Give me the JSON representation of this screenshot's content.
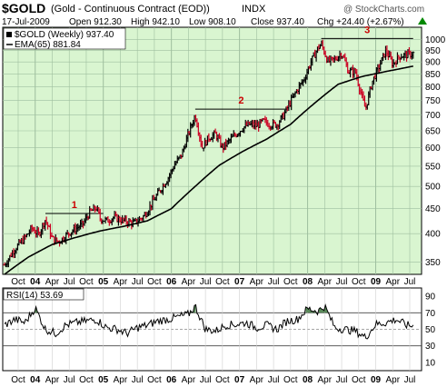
{
  "header": {
    "symbol": "$GOLD",
    "name": "(Gold - Continuous Contract (EOD))",
    "exchange": "INDX",
    "watermark": "@ StockCharts.com",
    "date": "17-Jul-2009",
    "open": "Open 912.30",
    "high": "High 942.10",
    "low": "Low 908.10",
    "close": "Close 937.40",
    "chg": "Chg +24.40 (+2.67%)",
    "chg_arrow": "triangle-up-icon"
  },
  "legend": {
    "price": "$GOLD (Weekly) 937.40",
    "ema": "EMA(65) 881.84",
    "rsi": "RSI(14) 53.69"
  },
  "colors": {
    "panel_bg": "#d9f5d0",
    "grid": "#9fbf9f",
    "up_bar": "#000000",
    "down_bar": "#cc0022",
    "ema_line": "#000000",
    "annotation": "#cc0000",
    "chg_text": "#008800",
    "rsi_fill": "#5a8a5a"
  },
  "chart_data": [
    {
      "type": "line",
      "title": "$GOLD (Gold - Continuous Contract (EOD)) INDX",
      "y_scale": "log",
      "ylim": [
        330,
        1060
      ],
      "y_ticks": [
        350,
        400,
        450,
        500,
        550,
        600,
        650,
        700,
        750,
        800,
        850,
        900,
        950,
        1000
      ],
      "x_tick_labels": [
        "Oct",
        "04",
        "Apr",
        "Jul",
        "Oct",
        "05",
        "Apr",
        "Jul",
        "Oct",
        "06",
        "Apr",
        "Jul",
        "Oct",
        "07",
        "Apr",
        "Jul",
        "Oct",
        "08",
        "Apr",
        "Jul",
        "Oct",
        "09",
        "Apr",
        "Jul"
      ],
      "series": [
        {
          "name": "$GOLD (Weekly)",
          "style": "ohlc-bars",
          "x": [
            2003.55,
            2003.7,
            2003.85,
            2003.95,
            2004.05,
            2004.15,
            2004.25,
            2004.35,
            2004.5,
            2004.6,
            2004.7,
            2004.8,
            2004.9,
            2004.95,
            2005.05,
            2005.15,
            2005.3,
            2005.45,
            2005.6,
            2005.75,
            2005.85,
            2005.95,
            2006.05,
            2006.15,
            2006.25,
            2006.35,
            2006.4,
            2006.45,
            2006.55,
            2006.65,
            2006.75,
            2006.85,
            2006.95,
            2007.05,
            2007.15,
            2007.25,
            2007.35,
            2007.45,
            2007.55,
            2007.65,
            2007.75,
            2007.85,
            2007.95,
            2008.05,
            2008.15,
            2008.2,
            2008.3,
            2008.4,
            2008.5,
            2008.6,
            2008.7,
            2008.8,
            2008.85,
            2008.95,
            2009.05,
            2009.15,
            2009.25,
            2009.35,
            2009.45,
            2009.55
          ],
          "values": [
            345,
            372,
            392,
            410,
            398,
            428,
            390,
            385,
            402,
            410,
            418,
            442,
            452,
            430,
            425,
            432,
            425,
            420,
            435,
            470,
            495,
            520,
            555,
            580,
            640,
            700,
            650,
            600,
            630,
            640,
            600,
            620,
            640,
            660,
            670,
            665,
            680,
            670,
            670,
            700,
            745,
            790,
            830,
            900,
            960,
            980,
            900,
            910,
            940,
            860,
            860,
            760,
            720,
            820,
            880,
            950,
            890,
            925,
            930,
            937
          ]
        },
        {
          "name": "EMA(65)",
          "style": "line",
          "x": [
            2003.55,
            2003.9,
            2004.25,
            2004.6,
            2004.95,
            2005.3,
            2005.65,
            2006.0,
            2006.35,
            2006.7,
            2007.05,
            2007.4,
            2007.75,
            2008.1,
            2008.45,
            2008.8,
            2009.15,
            2009.55
          ],
          "values": [
            330,
            358,
            380,
            393,
            405,
            414,
            425,
            450,
            500,
            552,
            590,
            625,
            670,
            740,
            810,
            840,
            860,
            882
          ]
        }
      ],
      "annotations": [
        {
          "label": "1",
          "y": 440,
          "from": 2004.15,
          "to": 2005.0
        },
        {
          "label": "2",
          "y": 720,
          "from": 2006.35,
          "to": 2007.7
        },
        {
          "label": "3",
          "y": 1005,
          "from": 2008.2,
          "to": 2009.55
        }
      ]
    },
    {
      "type": "line",
      "ylim": [
        0,
        100
      ],
      "y_ticks": [
        10,
        30,
        50,
        70,
        90
      ],
      "reference_lines": [
        30,
        50,
        70
      ],
      "x_tick_labels": [
        "Oct",
        "04",
        "Apr",
        "Jul",
        "Oct",
        "05",
        "Apr",
        "Jul",
        "Oct",
        "06",
        "Apr",
        "Jul",
        "Oct",
        "07",
        "Apr",
        "Jul",
        "Oct",
        "08",
        "Apr",
        "Jul",
        "Oct",
        "09",
        "Apr",
        "Jul"
      ],
      "series": [
        {
          "name": "RSI(14)",
          "x": [
            2003.55,
            2003.7,
            2003.85,
            2004.0,
            2004.15,
            2004.3,
            2004.45,
            2004.6,
            2004.75,
            2004.9,
            2005.05,
            2005.2,
            2005.35,
            2005.5,
            2005.65,
            2005.8,
            2005.95,
            2006.1,
            2006.25,
            2006.35,
            2006.5,
            2006.65,
            2006.8,
            2006.95,
            2007.1,
            2007.25,
            2007.4,
            2007.55,
            2007.7,
            2007.85,
            2008.0,
            2008.15,
            2008.25,
            2008.4,
            2008.55,
            2008.7,
            2008.85,
            2009.0,
            2009.15,
            2009.3,
            2009.45,
            2009.55
          ],
          "values": [
            55,
            62,
            58,
            76,
            50,
            45,
            55,
            58,
            60,
            62,
            52,
            50,
            45,
            52,
            55,
            60,
            62,
            65,
            68,
            78,
            50,
            48,
            55,
            56,
            58,
            52,
            55,
            50,
            60,
            62,
            75,
            72,
            78,
            52,
            50,
            48,
            40,
            56,
            58,
            62,
            55,
            54
          ]
        }
      ]
    }
  ]
}
